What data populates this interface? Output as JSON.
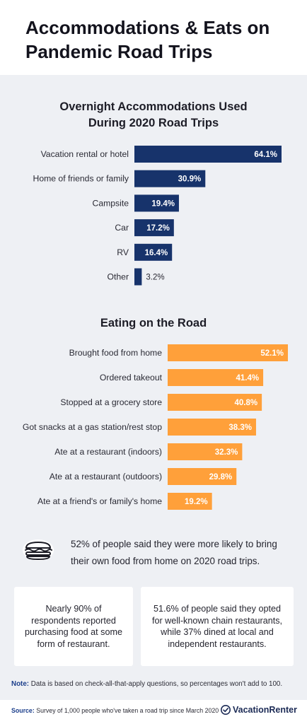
{
  "header": {
    "title": "Accommodations & Eats on Pandemic Road Trips"
  },
  "chart_data": [
    {
      "type": "bar",
      "orientation": "horizontal",
      "title": "Overnight Accommodations Used During 2020 Road Trips",
      "title_lines": [
        "Overnight Accommodations Used",
        "During 2020 Road Trips"
      ],
      "categories": [
        "Vacation rental or hotel",
        "Home of friends or family",
        "Campsite",
        "Car",
        "RV",
        "Other"
      ],
      "values": [
        64.1,
        30.9,
        19.4,
        17.2,
        16.4,
        3.2
      ],
      "value_labels": [
        "64.1%",
        "30.9%",
        "19.4%",
        "17.2%",
        "16.4%",
        "3.2%"
      ],
      "color": "#17336b",
      "xlim": [
        0,
        64.1
      ]
    },
    {
      "type": "bar",
      "orientation": "horizontal",
      "title": "Eating on the Road",
      "title_lines": [
        "Eating on the Road"
      ],
      "categories": [
        "Brought food from home",
        "Ordered takeout",
        "Stopped at a grocery store",
        "Got snacks at a gas station/rest stop",
        "Ate at a restaurant (indoors)",
        "Ate at a restaurant (outdoors)",
        "Ate at a friend's or family's home"
      ],
      "values": [
        52.1,
        41.4,
        40.8,
        38.3,
        32.3,
        29.8,
        19.2
      ],
      "value_labels": [
        "52.1%",
        "41.4%",
        "40.8%",
        "38.3%",
        "32.3%",
        "29.8%",
        "19.2%"
      ],
      "color": "#ffa03a",
      "xlim": [
        0,
        52.1
      ]
    }
  ],
  "callout": {
    "text": "52% of people said they were more likely to bring their own food from home on 2020 road trips.",
    "icon": "sandwich-icon"
  },
  "cards": {
    "left": "Nearly 90% of respondents reported purchasing food at some form of restaurant.",
    "right": "51.6% of people said they opted for well-known chain restaurants, while 37% dined at local and independent restaurants."
  },
  "note": {
    "label": "Note:",
    "text": "Data is based on check-all-that-apply questions, so percentages won't add to 100."
  },
  "footer": {
    "source_label": "Source:",
    "source_text": "Survey of 1,000 people who've taken a road trip since March 2020",
    "brand": "VacationRenter"
  }
}
